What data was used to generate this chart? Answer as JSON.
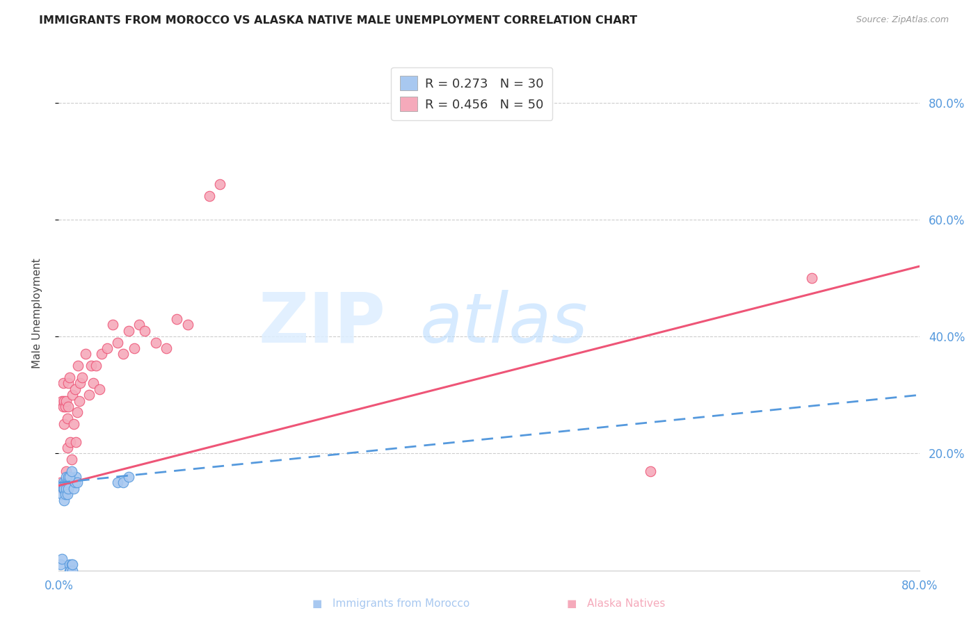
{
  "title": "IMMIGRANTS FROM MOROCCO VS ALASKA NATIVE MALE UNEMPLOYMENT CORRELATION CHART",
  "source": "Source: ZipAtlas.com",
  "ylabel": "Male Unemployment",
  "right_yticks": [
    "80.0%",
    "60.0%",
    "40.0%",
    "20.0%"
  ],
  "right_ytick_vals": [
    0.8,
    0.6,
    0.4,
    0.2
  ],
  "blue_color": "#A8C8F0",
  "pink_color": "#F5AABB",
  "blue_line_color": "#5599DD",
  "pink_line_color": "#EE5577",
  "blue_scatter_x": [
    0.002,
    0.003,
    0.003,
    0.004,
    0.004,
    0.005,
    0.005,
    0.006,
    0.006,
    0.007,
    0.007,
    0.008,
    0.008,
    0.009,
    0.009,
    0.01,
    0.01,
    0.011,
    0.012,
    0.013,
    0.013,
    0.014,
    0.015,
    0.016,
    0.017,
    0.055,
    0.06,
    0.065,
    0.01,
    0.012
  ],
  "blue_scatter_y": [
    0.01,
    0.02,
    0.13,
    0.14,
    0.15,
    0.12,
    0.14,
    0.13,
    0.15,
    0.14,
    0.16,
    0.13,
    0.15,
    0.14,
    0.16,
    0.0,
    0.01,
    0.0,
    0.01,
    0.0,
    0.01,
    0.14,
    0.15,
    0.16,
    0.15,
    0.15,
    0.15,
    0.16,
    0.16,
    0.17
  ],
  "pink_scatter_x": [
    0.002,
    0.003,
    0.003,
    0.004,
    0.004,
    0.005,
    0.005,
    0.006,
    0.006,
    0.007,
    0.007,
    0.008,
    0.008,
    0.009,
    0.009,
    0.01,
    0.011,
    0.012,
    0.013,
    0.014,
    0.015,
    0.016,
    0.017,
    0.018,
    0.019,
    0.02,
    0.022,
    0.025,
    0.028,
    0.03,
    0.032,
    0.035,
    0.038,
    0.04,
    0.045,
    0.05,
    0.055,
    0.06,
    0.065,
    0.07,
    0.075,
    0.08,
    0.09,
    0.1,
    0.11,
    0.12,
    0.14,
    0.15,
    0.55,
    0.7
  ],
  "pink_scatter_y": [
    0.15,
    0.14,
    0.29,
    0.28,
    0.32,
    0.25,
    0.29,
    0.15,
    0.28,
    0.17,
    0.29,
    0.21,
    0.26,
    0.32,
    0.28,
    0.33,
    0.22,
    0.19,
    0.3,
    0.25,
    0.31,
    0.22,
    0.27,
    0.35,
    0.29,
    0.32,
    0.33,
    0.37,
    0.3,
    0.35,
    0.32,
    0.35,
    0.31,
    0.37,
    0.38,
    0.42,
    0.39,
    0.37,
    0.41,
    0.38,
    0.42,
    0.41,
    0.39,
    0.38,
    0.43,
    0.42,
    0.64,
    0.66,
    0.17,
    0.5
  ],
  "xlim": [
    0.0,
    0.8
  ],
  "ylim": [
    0.0,
    0.88
  ],
  "pink_line_x": [
    0.0,
    0.8
  ],
  "pink_line_y": [
    0.145,
    0.52
  ],
  "blue_line_x": [
    0.0,
    0.8
  ],
  "blue_line_y": [
    0.15,
    0.3
  ]
}
